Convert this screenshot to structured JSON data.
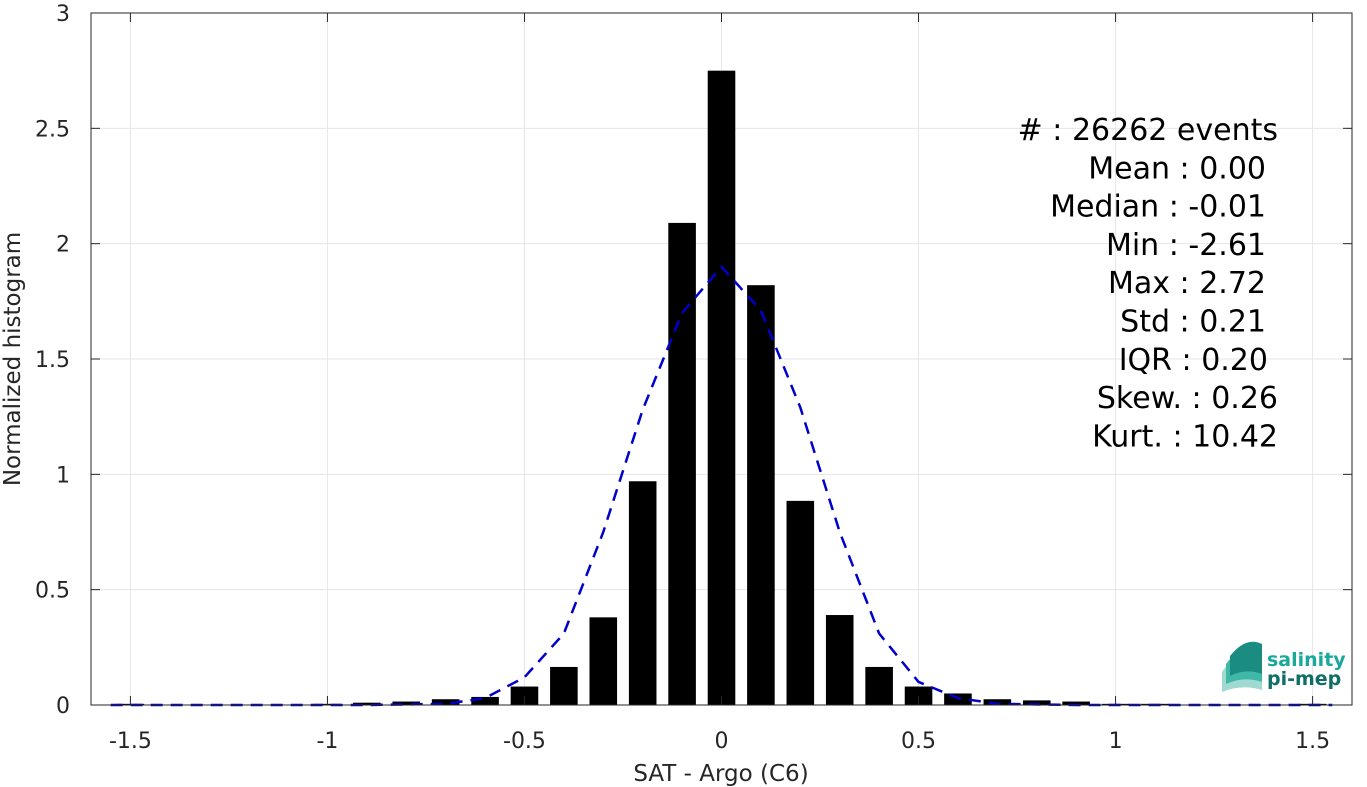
{
  "chart_data": {
    "type": "bar",
    "title": "",
    "xlabel": "SAT - Argo (C6)",
    "ylabel": "Normalized histogram",
    "xlim": [
      -1.6,
      1.6
    ],
    "ylim": [
      0,
      3
    ],
    "grid": true,
    "xticks": [
      -1.5,
      -1,
      -0.5,
      0,
      0.5,
      1,
      1.5
    ],
    "xtick_labels": [
      "-1.5",
      "-1",
      "-0.5",
      "0",
      "0.5",
      "1",
      "1.5"
    ],
    "yticks": [
      0,
      0.5,
      1,
      1.5,
      2,
      2.5,
      3
    ],
    "ytick_labels": [
      "0",
      "0.5",
      "1",
      "1.5",
      "2",
      "2.5",
      "3"
    ],
    "bar_width": 0.07,
    "bar_color": "#000000",
    "bars": [
      {
        "x": -1.5,
        "y": 0.005
      },
      {
        "x": -1.0,
        "y": 0.005
      },
      {
        "x": -0.9,
        "y": 0.01
      },
      {
        "x": -0.8,
        "y": 0.015
      },
      {
        "x": -0.7,
        "y": 0.025
      },
      {
        "x": -0.6,
        "y": 0.035
      },
      {
        "x": -0.5,
        "y": 0.08
      },
      {
        "x": -0.4,
        "y": 0.165
      },
      {
        "x": -0.3,
        "y": 0.38
      },
      {
        "x": -0.2,
        "y": 0.97
      },
      {
        "x": -0.1,
        "y": 2.09
      },
      {
        "x": 0.0,
        "y": 2.75
      },
      {
        "x": 0.1,
        "y": 1.82
      },
      {
        "x": 0.2,
        "y": 0.885
      },
      {
        "x": 0.3,
        "y": 0.39
      },
      {
        "x": 0.4,
        "y": 0.165
      },
      {
        "x": 0.5,
        "y": 0.08
      },
      {
        "x": 0.6,
        "y": 0.05
      },
      {
        "x": 0.7,
        "y": 0.025
      },
      {
        "x": 0.8,
        "y": 0.02
      },
      {
        "x": 0.9,
        "y": 0.015
      },
      {
        "x": 1.0,
        "y": 0.005
      },
      {
        "x": 1.1,
        "y": 0.005
      },
      {
        "x": 1.5,
        "y": 0.005
      }
    ],
    "fit_curve": {
      "style": "dashed",
      "color": "#0000cc",
      "x": [
        -1.55,
        -1.2,
        -0.9,
        -0.7,
        -0.6,
        -0.5,
        -0.4,
        -0.3,
        -0.2,
        -0.1,
        0.0,
        0.1,
        0.2,
        0.3,
        0.4,
        0.5,
        0.6,
        0.7,
        0.9,
        1.2,
        1.55
      ],
      "y": [
        0.0,
        0.0,
        0.0,
        0.005,
        0.03,
        0.12,
        0.31,
        0.75,
        1.28,
        1.7,
        1.9,
        1.71,
        1.29,
        0.75,
        0.31,
        0.1,
        0.03,
        0.005,
        0.0,
        0.0,
        0.0
      ]
    }
  },
  "stats": [
    {
      "label": "#  : 26262 events"
    },
    {
      "label": "Mean : 0.00"
    },
    {
      "label": "Median : -0.01"
    },
    {
      "label": "Min : -2.61"
    },
    {
      "label": "Max : 2.72"
    },
    {
      "label": "Std : 0.21"
    },
    {
      "label": "IQR : 0.20"
    },
    {
      "label": "Skew. : 0.26"
    },
    {
      "label": "Kurt. : 10.42"
    }
  ],
  "logo": {
    "line1": "salinity",
    "line2": "pi-mep",
    "color1": "#1aa89a",
    "color2": "#0f6e66"
  }
}
